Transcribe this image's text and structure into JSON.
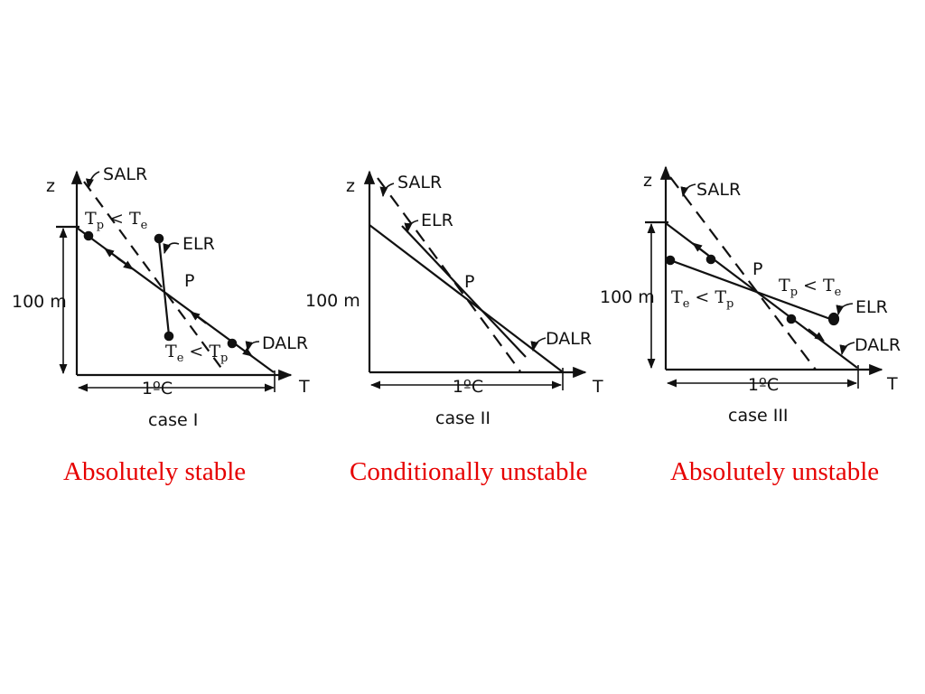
{
  "panels": [
    {
      "axes": {
        "z": "z",
        "T": "T",
        "height": "100 m",
        "width": "1ºC"
      },
      "lines": {
        "salr": "SALR",
        "elr": "ELR",
        "dalr": "DALR"
      },
      "point": "P",
      "case_label": "case I",
      "comparison_upper": {
        "a": "T",
        "a_sub": "p",
        "op": "<",
        "b": "T",
        "b_sub": "e"
      },
      "comparison_lower": {
        "a": "T",
        "a_sub": "e",
        "op": "<",
        "b": "T",
        "b_sub": "p"
      },
      "caption": "Absolutely stable"
    },
    {
      "axes": {
        "z": "z",
        "T": "T",
        "height": "100 m",
        "width": "1ºC"
      },
      "lines": {
        "salr": "SALR",
        "elr": "ELR",
        "dalr": "DALR"
      },
      "point": "P",
      "case_label": "case II",
      "caption": "Conditionally unstable"
    },
    {
      "axes": {
        "z": "z",
        "T": "T",
        "height": "100 m",
        "width": "1ºC"
      },
      "lines": {
        "salr": "SALR",
        "elr": "ELR",
        "dalr": "DALR"
      },
      "point": "P",
      "case_label": "case III",
      "comparison_left": {
        "a": "T",
        "a_sub": "e",
        "op": "<",
        "b": "T",
        "b_sub": "p"
      },
      "comparison_right": {
        "a": "T",
        "a_sub": "p",
        "op": "<",
        "b": "T",
        "b_sub": "e"
      },
      "caption": "Absolutely unstable"
    }
  ],
  "colors": {
    "caption": "#e60000",
    "ink": "#111111"
  }
}
